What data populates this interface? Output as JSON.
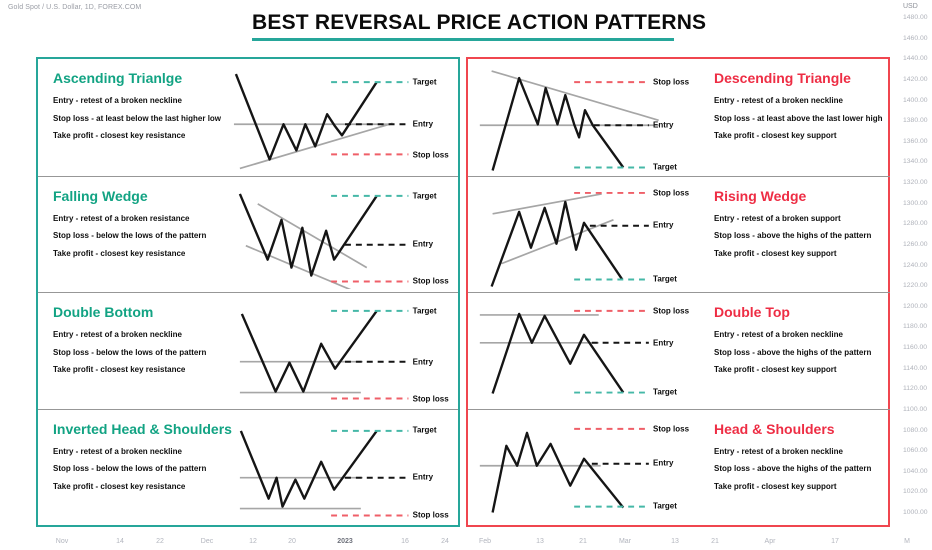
{
  "app": {
    "symbol_info": "Gold Spot / U.S. Dollar, 1D, FOREX.COM"
  },
  "title": "BEST REVERSAL PRICE ACTION PATTERNS",
  "diagram_labels": {
    "target": "Target",
    "entry": "Entry",
    "stop_loss": "Stop loss"
  },
  "colors": {
    "teal_accent": "#26a69a",
    "green_title": "#12a383",
    "red_accent": "#f0464f",
    "red_title": "#ee2d44",
    "target_dash": "#45b8a7",
    "stop_dash": "#ef5f68",
    "entry_dash": "#151515"
  },
  "panels": {
    "left": {
      "patterns": [
        {
          "title": "Ascending Trianlge",
          "entry": "Entry - retest of a broken neckline",
          "stop_loss": "Stop loss - at least below the last higher low",
          "take_profit": "Take profit - closest key resistance"
        },
        {
          "title": "Falling Wedge",
          "entry": "Entry - retest of a broken resistance",
          "stop_loss": "Stop loss - below the lows of the pattern",
          "take_profit": "Take profit - closest key resistance"
        },
        {
          "title": "Double Bottom",
          "entry": "Entry - retest of a broken neckline",
          "stop_loss": "Stop loss - below the lows of the pattern",
          "take_profit": "Take profit - closest key resistance"
        },
        {
          "title": "Inverted Head & Shoulders",
          "entry": "Entry - retest of a broken neckline",
          "stop_loss": "Stop loss - below the lows of the pattern",
          "take_profit": "Take profit - closest key resistance"
        }
      ]
    },
    "right": {
      "patterns": [
        {
          "title": "Descending Triangle",
          "entry": "Entry - retest of a broken neckline",
          "stop_loss": "Stop loss - at least above the last lower high",
          "take_profit": "Take profit - closest key support"
        },
        {
          "title": "Rising Wedge",
          "entry": "Entry - retest of a broken support",
          "stop_loss": "Stop loss - above the highs of the pattern",
          "take_profit": "Take profit - closest key support"
        },
        {
          "title": "Double Top",
          "entry": "Entry - retest of a broken neckline",
          "stop_loss": "Stop loss - above the highs of the pattern",
          "take_profit": "Take profit - closest key support"
        },
        {
          "title": "Head & Shoulders",
          "entry": "Entry - retest of a broken neckline",
          "stop_loss": "Stop loss - above the highs of the pattern",
          "take_profit": "Take profit - closest key support"
        }
      ]
    }
  },
  "price_axis": {
    "currency": "USD",
    "ticks": [
      "1480.00",
      "1460.00",
      "1440.00",
      "1420.00",
      "1400.00",
      "1380.00",
      "1360.00",
      "1340.00",
      "1320.00",
      "1300.00",
      "1280.00",
      "1260.00",
      "1240.00",
      "1220.00",
      "1200.00",
      "1180.00",
      "1160.00",
      "1140.00",
      "1120.00",
      "1100.00",
      "1080.00",
      "1060.00",
      "1040.00",
      "1020.00",
      "1000.00"
    ]
  },
  "time_axis": {
    "ticks": [
      "Nov",
      "14",
      "22",
      "Dec",
      "12",
      "20",
      "2023",
      "16",
      "24",
      "Feb",
      "13",
      "21",
      "Mar",
      "13",
      "21",
      "Apr",
      "17",
      "M"
    ]
  }
}
